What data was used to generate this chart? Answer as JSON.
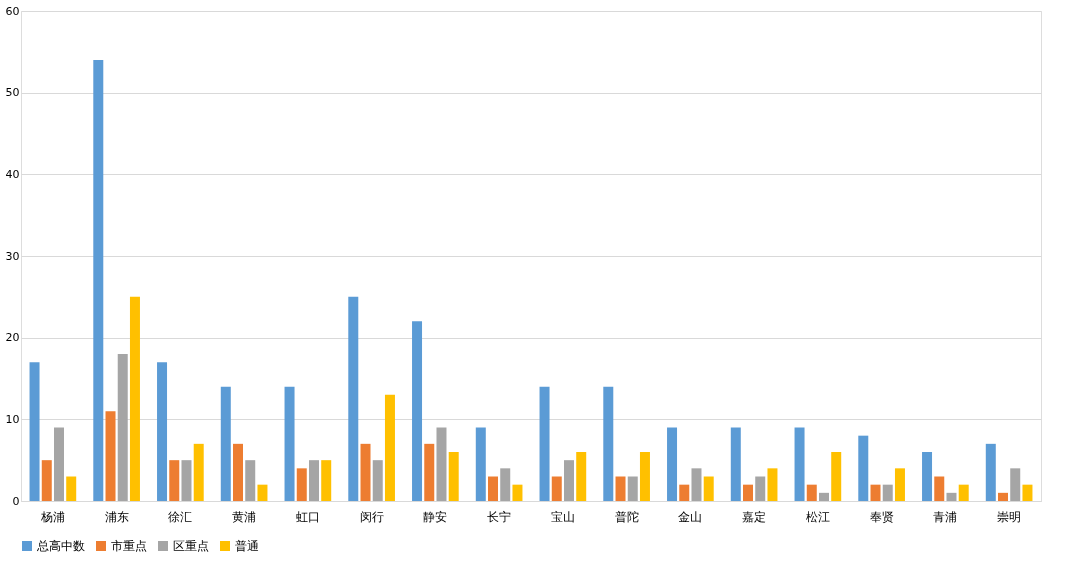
{
  "chart_data": {
    "type": "bar",
    "categories": [
      "杨浦",
      "浦东",
      "徐汇",
      "黄浦",
      "虹口",
      "闵行",
      "静安",
      "长宁",
      "宝山",
      "普陀",
      "金山",
      "嘉定",
      "松江",
      "奉贤",
      "青浦",
      "崇明"
    ],
    "series": [
      {
        "name": "总高中数",
        "color": "#5b9bd5",
        "values": [
          17,
          54,
          17,
          14,
          14,
          25,
          22,
          9,
          14,
          14,
          9,
          9,
          9,
          8,
          6,
          7
        ]
      },
      {
        "name": "市重点",
        "color": "#ed7d31",
        "values": [
          5,
          11,
          5,
          7,
          4,
          7,
          7,
          3,
          3,
          3,
          2,
          2,
          2,
          2,
          3,
          1
        ]
      },
      {
        "name": "区重点",
        "color": "#a5a5a5",
        "values": [
          9,
          18,
          5,
          5,
          5,
          5,
          9,
          4,
          5,
          3,
          4,
          3,
          1,
          2,
          1,
          4
        ]
      },
      {
        "name": "普通",
        "color": "#ffc000",
        "values": [
          3,
          25,
          7,
          2,
          5,
          13,
          6,
          2,
          6,
          6,
          3,
          4,
          6,
          4,
          2,
          2
        ]
      }
    ],
    "ylim": [
      0,
      60
    ],
    "yticks": [
      0,
      10,
      20,
      30,
      40,
      50,
      60
    ],
    "grid": "y",
    "legend": "bottom"
  }
}
